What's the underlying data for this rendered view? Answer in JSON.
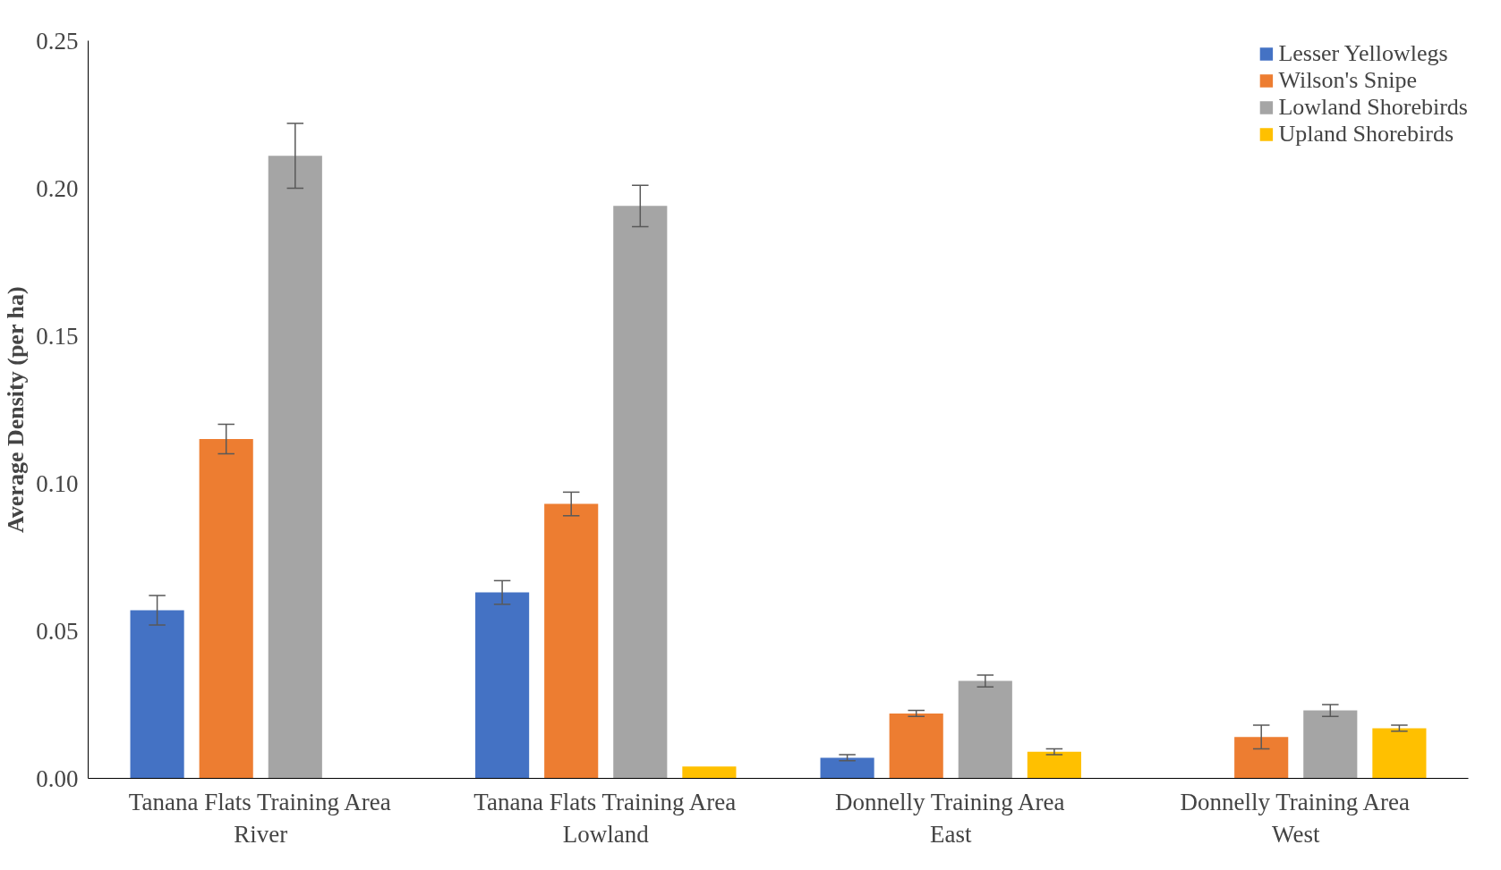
{
  "chart_data": {
    "type": "bar",
    "ylabel": "Average Density (per ha)",
    "categories": [
      "Tanana Flats Training Area River",
      "Tanana Flats Training Area Lowland",
      "Donnelly Training Area East",
      "Donnelly Training Area West"
    ],
    "series": [
      {
        "name": "Lesser Yellowlegs",
        "color": "#4472c4",
        "values": [
          0.057,
          0.063,
          0.007,
          0
        ],
        "errors": [
          0.005,
          0.004,
          0.001,
          null
        ]
      },
      {
        "name": "Wilson's Snipe",
        "color": "#ed7d31",
        "values": [
          0.115,
          0.093,
          0.022,
          0.014
        ],
        "errors": [
          0.005,
          0.004,
          0.001,
          0.004
        ]
      },
      {
        "name": "Lowland Shorebirds",
        "color": "#a5a5a5",
        "values": [
          0.211,
          0.194,
          0.033,
          0.023
        ],
        "errors": [
          0.011,
          0.007,
          0.002,
          0.002
        ]
      },
      {
        "name": "Upland Shorebirds",
        "color": "#ffc000",
        "values": [
          0,
          0.004,
          0.009,
          0.017
        ],
        "errors": [
          null,
          null,
          0.001,
          0.001
        ]
      }
    ],
    "ylim": [
      0,
      0.25
    ],
    "yticks": [
      {
        "value": 0,
        "label": "0.00"
      },
      {
        "value": 0.05,
        "label": "0.05"
      },
      {
        "value": 0.1,
        "label": "0.10"
      },
      {
        "value": 0.15,
        "label": "0.15"
      },
      {
        "value": 0.2,
        "label": "0.20"
      },
      {
        "value": 0.25,
        "label": "0.25"
      }
    ],
    "grid": false,
    "legend": "top right"
  }
}
